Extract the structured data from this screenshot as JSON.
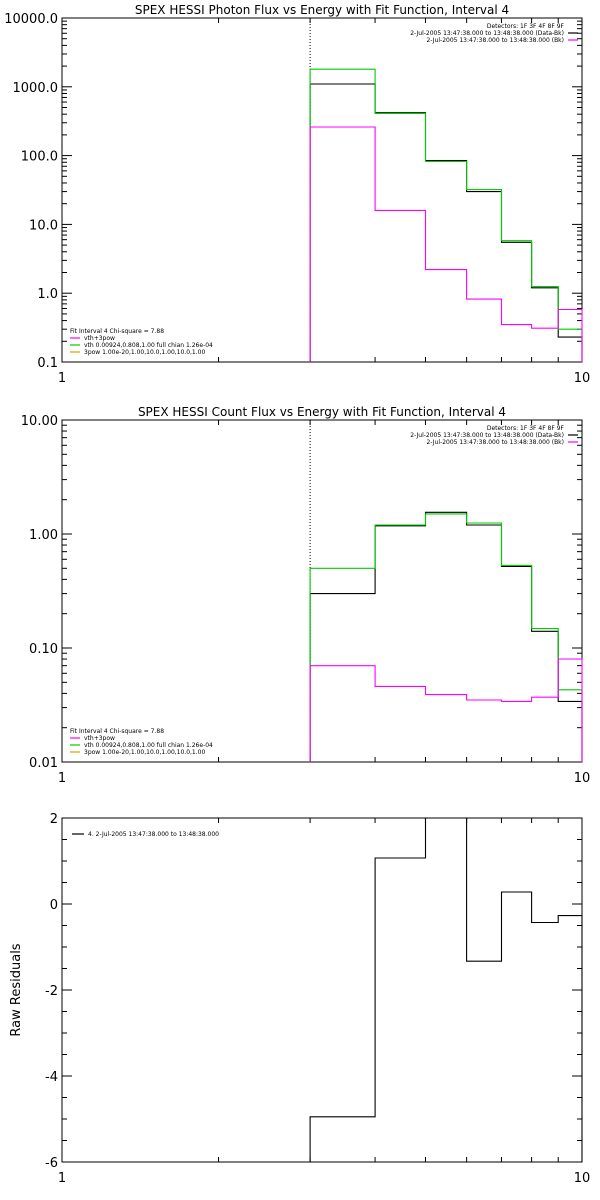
{
  "chart_data": [
    {
      "type": "line",
      "title": "SPEX HESSI Photon Flux vs Energy with Fit Function, Interval 4",
      "xlabel": "",
      "ylabel": "",
      "xscale": "log",
      "yscale": "log",
      "xlim": [
        1,
        10
      ],
      "ylim": [
        0.1,
        10000
      ],
      "x_ticks": [
        "1",
        "10"
      ],
      "y_ticks": [
        {
          "value": 10000,
          "label": "10000.0"
        },
        {
          "value": 1000,
          "label": "1000.0"
        },
        {
          "value": 100,
          "label": "100.0"
        },
        {
          "value": 10,
          "label": "10.0"
        },
        {
          "value": 1,
          "label": "1.0"
        },
        {
          "value": 0.1,
          "label": "0.1"
        }
      ],
      "vline": 3,
      "legend_top_right": [
        {
          "text": "Detectors: 1F 3F 4F 8F 9F",
          "color": "#000000"
        },
        {
          "text": "2-Jul-2005 13:47:38.000 to 13:48:38.000 (Data-Bk)",
          "color": "#000000"
        },
        {
          "text": "2-Jul-2005 13:47:38.000 to 13:48:38.000 (Bk)",
          "color": "#ff00ff"
        }
      ],
      "legend_bottom_left": [
        {
          "text": "Fit Interval 4   Chi-square = 7.88",
          "color": "#000000"
        },
        {
          "text": "vth+3pow",
          "color": "#ff00ff"
        },
        {
          "text": "vth 0.00924,0.808,1.00  full chian 1.26e-04",
          "color": "#00cc00"
        },
        {
          "text": "3pow 1.00e-20,1.00,10.0,1.00,10.0,1.00",
          "color": "#e0a000"
        }
      ],
      "bin_edges": [
        3,
        4,
        5,
        6,
        7,
        8,
        9,
        10
      ],
      "series": [
        {
          "name": "2-Jul-2005 13:47:38.000 to 13:48:38.000 (Data-Bk)",
          "color": "#000000",
          "values": [
            1100,
            420,
            85,
            30,
            5.5,
            1.2,
            0.23
          ]
        },
        {
          "name": "vth+3pow",
          "color": "#00cc00",
          "values": [
            1800,
            410,
            82,
            32,
            5.8,
            1.25,
            0.3
          ]
        },
        {
          "name": "2-Jul-2005 13:47:38.000 to 13:48:38.000 (Bk)",
          "color": "#ff00ff",
          "values": [
            260,
            16,
            2.2,
            0.82,
            0.35,
            0.31,
            0.58
          ]
        }
      ]
    },
    {
      "type": "line",
      "title": "SPEX HESSI Count Flux vs Energy with Fit Function, Interval 4",
      "xlabel": "",
      "ylabel": "",
      "xscale": "log",
      "yscale": "log",
      "xlim": [
        1,
        10
      ],
      "ylim": [
        0.01,
        10
      ],
      "x_ticks": [
        "1",
        "10"
      ],
      "y_ticks": [
        {
          "value": 10,
          "label": "10.00"
        },
        {
          "value": 1,
          "label": "1.00"
        },
        {
          "value": 0.1,
          "label": "0.10"
        },
        {
          "value": 0.01,
          "label": "0.01"
        }
      ],
      "vline": 3,
      "legend_top_right": [
        {
          "text": "Detectors: 1F 3F 4F 8F 9F",
          "color": "#000000"
        },
        {
          "text": "2-Jul-2005 13:47:38.000 to 13:48:38.000 (Data-Bk)",
          "color": "#000000"
        },
        {
          "text": "2-Jul-2005 13:47:38.000 to 13:48:38.000 (Bk)",
          "color": "#ff00ff"
        }
      ],
      "legend_bottom_left": [
        {
          "text": "Fit Interval 4   Chi-square = 7.88",
          "color": "#000000"
        },
        {
          "text": "vth+3pow",
          "color": "#ff00ff"
        },
        {
          "text": "vth 0.00924,0.808,1.00  full chian 1.26e-04",
          "color": "#00cc00"
        },
        {
          "text": "3pow 1.00e-20,1.00,10.0,1.00,10.0,1.00",
          "color": "#e0a000"
        }
      ],
      "bin_edges": [
        3,
        4,
        5,
        6,
        7,
        8,
        9,
        10
      ],
      "series": [
        {
          "name": "2-Jul-2005 13:47:38.000 to 13:48:38.000 (Data-Bk)",
          "color": "#000000",
          "values": [
            0.3,
            1.18,
            1.55,
            1.2,
            0.52,
            0.14,
            0.034
          ]
        },
        {
          "name": "vth+3pow",
          "color": "#00cc00",
          "values": [
            0.5,
            1.2,
            1.5,
            1.25,
            0.53,
            0.148,
            0.043
          ]
        },
        {
          "name": "2-Jul-2005 13:47:38.000 to 13:48:38.000 (Bk)",
          "color": "#ff00ff",
          "values": [
            0.07,
            0.046,
            0.039,
            0.035,
            0.034,
            0.037,
            0.08
          ]
        }
      ]
    },
    {
      "type": "line",
      "title": "",
      "xlabel": "",
      "ylabel": "Raw Residuals",
      "xscale": "log",
      "yscale": "linear",
      "xlim": [
        1,
        10
      ],
      "ylim": [
        -6,
        2
      ],
      "x_ticks": [
        "1",
        "10"
      ],
      "y_ticks": [
        {
          "value": 2,
          "label": "2"
        },
        {
          "value": 0,
          "label": "0"
        },
        {
          "value": -2,
          "label": "-2"
        },
        {
          "value": -4,
          "label": "-4"
        },
        {
          "value": -6,
          "label": "-6"
        }
      ],
      "legend_top_left": [
        {
          "text": "4.  2-Jul-2005 13:47:38.000 to 13:48:38.000",
          "color": "#000000"
        }
      ],
      "bin_edges": [
        3,
        4,
        5,
        6,
        7,
        8,
        9,
        10
      ],
      "series": [
        {
          "name": "4.  2-Jul-2005 13:47:38.000 to 13:48:38.000",
          "color": "#000000",
          "values": [
            -4.95,
            1.07,
            2.0,
            -1.33,
            0.28,
            -0.43,
            -0.27
          ]
        }
      ]
    }
  ]
}
